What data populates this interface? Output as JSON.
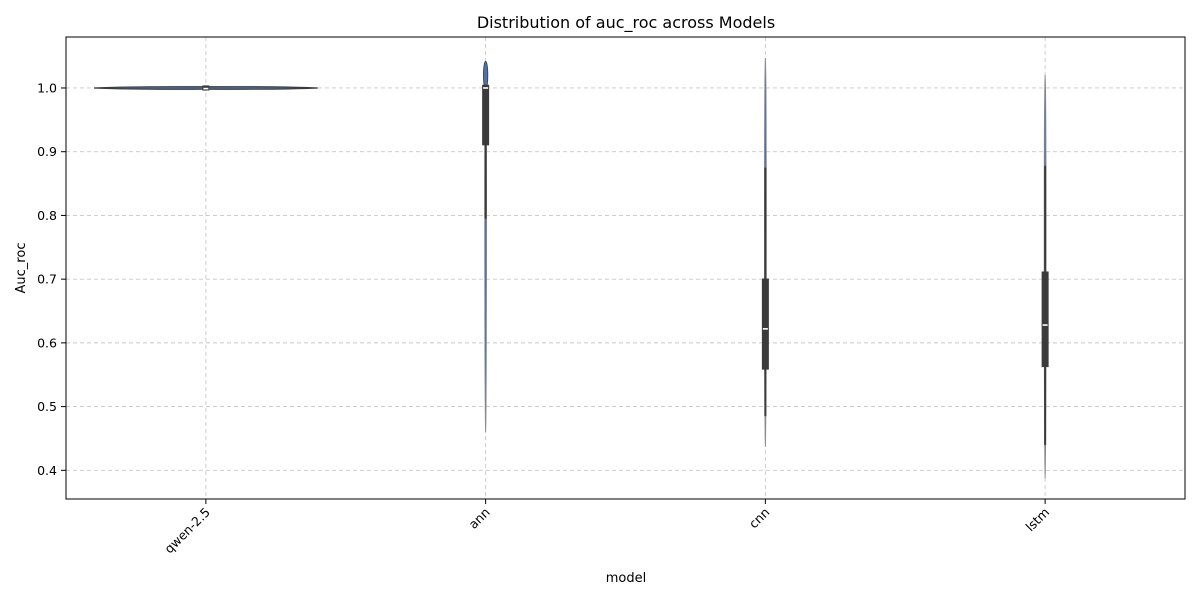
{
  "chart_data": {
    "type": "violin",
    "title": "Distribution of auc_roc across Models",
    "xlabel": "model",
    "ylabel": "Auc_roc",
    "categories": [
      "qwen-2.5",
      "ann",
      "cnn",
      "lstm"
    ],
    "ylim": [
      0.355,
      1.08
    ],
    "yticks": [
      0.4,
      0.5,
      0.6,
      0.7,
      0.8,
      0.9,
      1.0
    ],
    "ytick_labels": [
      "0.4",
      "0.5",
      "0.6",
      "0.7",
      "0.8",
      "0.9",
      "1.0"
    ],
    "grid": true,
    "series": [
      {
        "category": "qwen-2.5",
        "violin_min": 0.997,
        "violin_max": 1.003,
        "whisker_low": 0.996,
        "q1": 0.996,
        "median": 0.999,
        "q3": 1.004,
        "whisker_high": 1.004
      },
      {
        "category": "ann",
        "violin_min": 0.46,
        "violin_max": 1.037,
        "whisker_low": 0.795,
        "q1": 0.91,
        "median": 1.0,
        "q3": 1.005,
        "whisker_high": 1.005
      },
      {
        "category": "cnn",
        "violin_min": 0.437,
        "violin_max": 1.047,
        "whisker_low": 0.485,
        "q1": 0.558,
        "median": 0.622,
        "q3": 0.701,
        "whisker_high": 0.875
      },
      {
        "category": "lstm",
        "violin_min": 0.387,
        "violin_max": 1.02,
        "whisker_low": 0.44,
        "q1": 0.562,
        "median": 0.628,
        "q3": 0.712,
        "whisker_high": 0.878
      }
    ],
    "colors": {
      "violin_fill": "#4c72b0",
      "box": "#3b3b3b",
      "median": "#ffffff",
      "grid": "#c8c8c8"
    }
  }
}
